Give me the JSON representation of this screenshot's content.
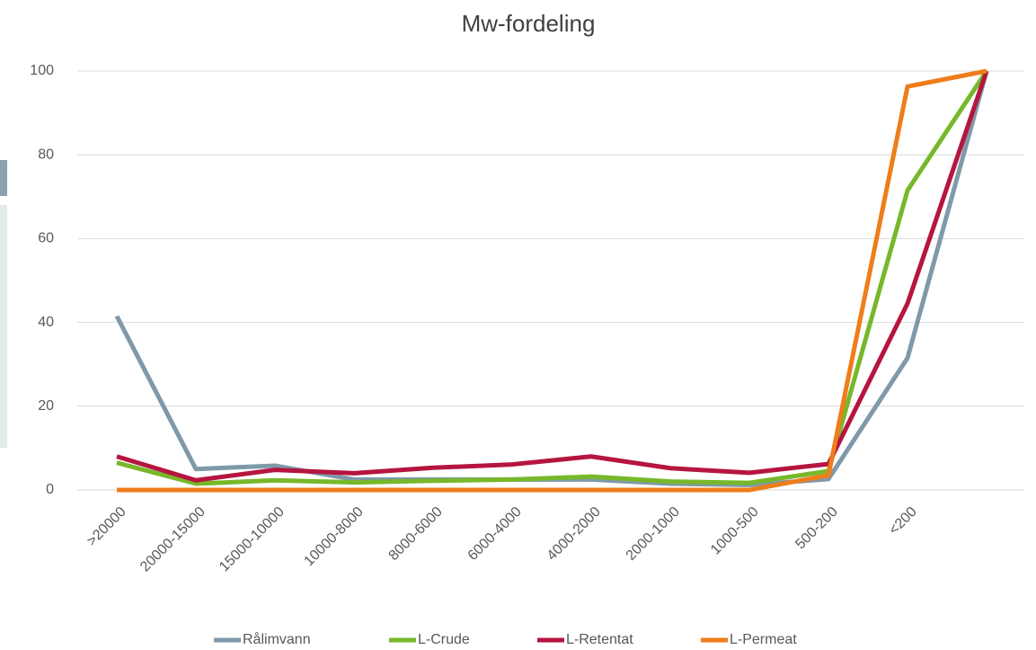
{
  "chart_data": {
    "type": "line",
    "title": "Mw-fordeling",
    "categories": [
      ">20000",
      "20000-15000",
      "15000-10000",
      "10000-8000",
      "8000-6000",
      "6000-4000",
      "4000-2000",
      "2000-1000",
      "1000-500",
      "500-200",
      "<200",
      null
    ],
    "series": [
      {
        "name": "Rålimvann",
        "color": "#7f99a9",
        "values": [
          41.5,
          5,
          5.8,
          2.5,
          2.5,
          2.5,
          2.5,
          1.5,
          1.2,
          2.6,
          31.5,
          100
        ]
      },
      {
        "name": "L-Crude",
        "color": "#77b82a",
        "values": [
          6.5,
          1.5,
          2.3,
          1.8,
          2.2,
          2.5,
          3.2,
          2,
          1.7,
          4.5,
          71.5,
          100
        ]
      },
      {
        "name": "L-Retentat",
        "color": "#b5153f",
        "values": [
          8,
          2.3,
          4.8,
          4,
          5.3,
          6.1,
          8,
          5.2,
          4.1,
          6.2,
          44.5,
          100
        ]
      },
      {
        "name": "L-Permeat",
        "color": "#ee7d1a",
        "values": [
          0,
          0,
          0,
          0,
          0,
          0,
          0,
          0,
          0,
          3.5,
          96.3,
          100
        ]
      }
    ],
    "ylim": [
      0,
      100
    ],
    "yticks": [
      0,
      20,
      40,
      60,
      80,
      100
    ],
    "grid": true,
    "legend": "bottom"
  }
}
